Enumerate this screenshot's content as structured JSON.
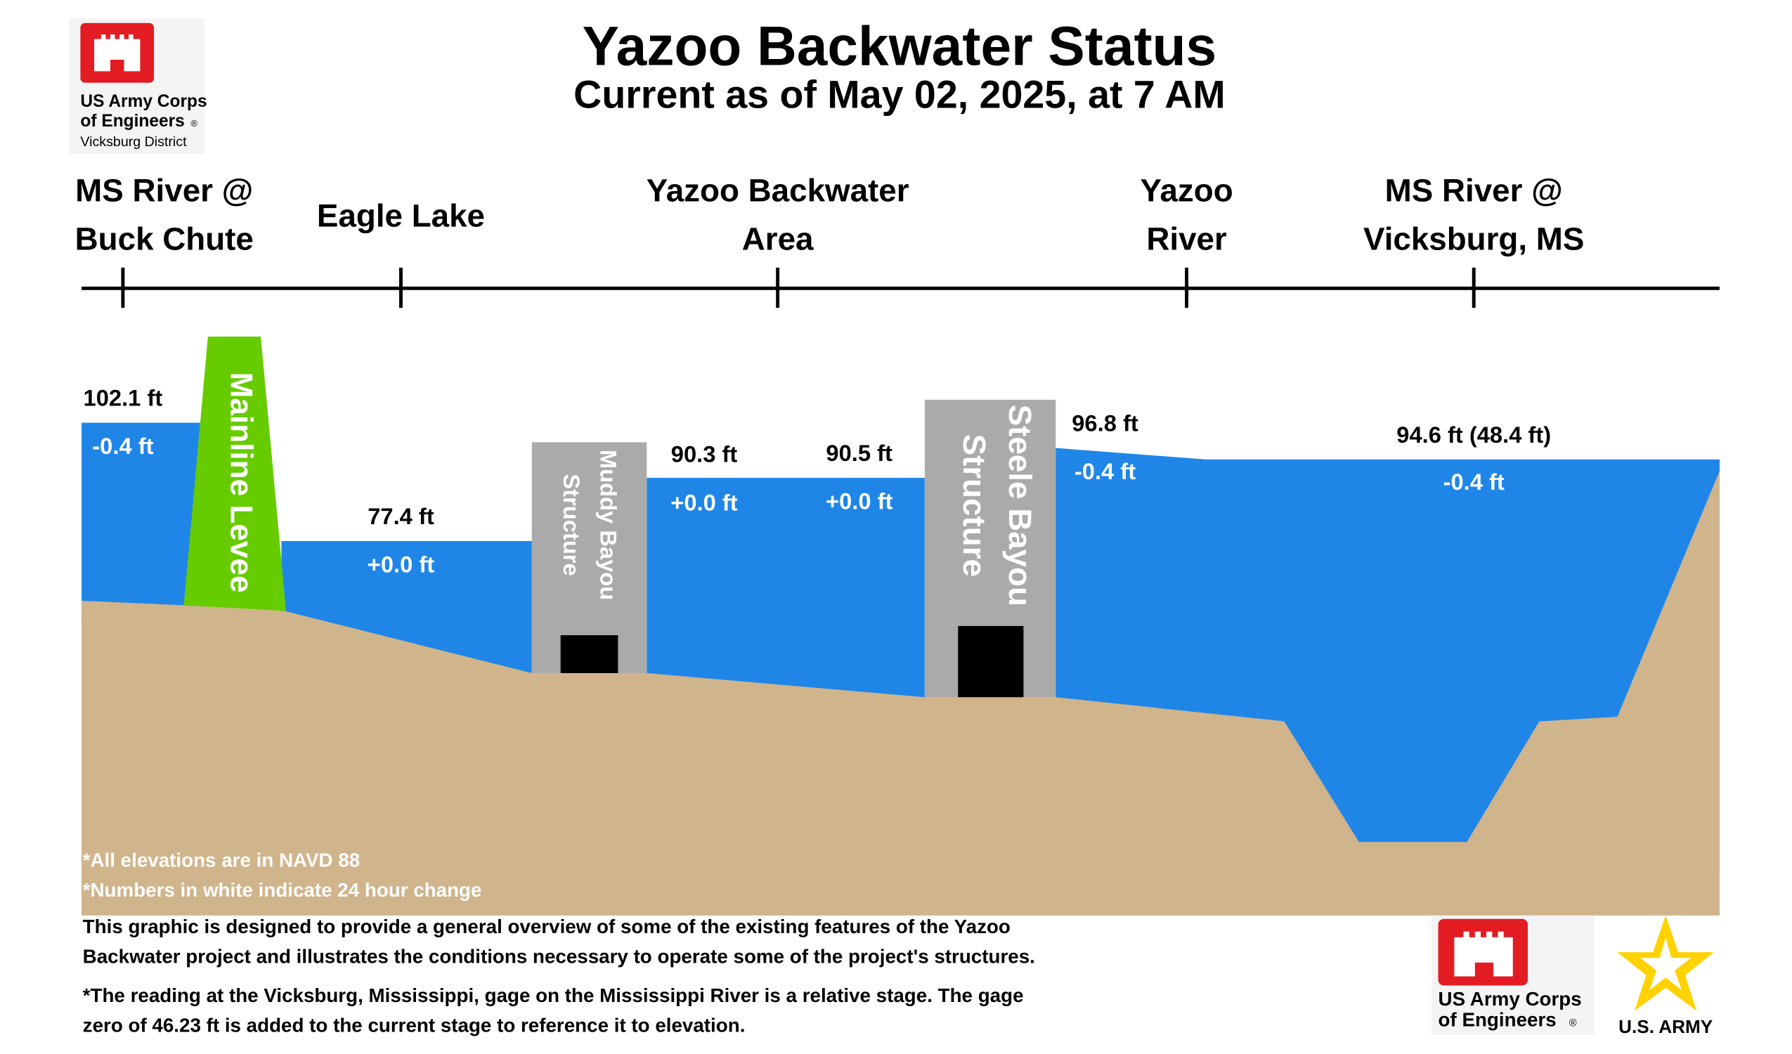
{
  "header": {
    "title": "Yazoo Backwater Status",
    "subtitle": "Current as of May 02, 2025, at 7 AM",
    "logo_lines": [
      "US Army Corps",
      "of Engineers",
      "Vicksburg District"
    ],
    "registered": "®"
  },
  "locations": [
    {
      "lines": [
        "MS River @",
        "Buck Chute"
      ]
    },
    {
      "lines": [
        "Eagle Lake"
      ]
    },
    {
      "lines": [
        "Yazoo Backwater",
        "Area"
      ]
    },
    {
      "lines": [
        "Yazoo",
        "River"
      ]
    },
    {
      "lines": [
        "MS River @",
        "Vicksburg, MS"
      ]
    }
  ],
  "structures": [
    {
      "lines": [
        "Mainline Levee"
      ]
    },
    {
      "lines": [
        "Muddy Bayou",
        "Structure"
      ]
    },
    {
      "lines": [
        "Steele Bayou",
        "Structure"
      ]
    }
  ],
  "readings": [
    {
      "stage": "102.1 ft",
      "change": "-0.4 ft"
    },
    {
      "stage": "77.4 ft",
      "change": "+0.0 ft"
    },
    {
      "stage": "90.3 ft",
      "change": "+0.0 ft"
    },
    {
      "stage": "90.5 ft",
      "change": "+0.0 ft"
    },
    {
      "stage": "96.8 ft",
      "change": "-0.4 ft"
    },
    {
      "stage": "94.6 ft (48.4 ft)",
      "change": "-0.4 ft"
    }
  ],
  "footnotes": [
    "*All elevations are in NAVD 88",
    "*Numbers in white indicate 24 hour change"
  ],
  "notes": [
    {
      "lines": [
        "This graphic is designed to provide a general overview of some of the existing features of the Yazoo",
        "Backwater project and illustrates the conditions necessary to operate some of the project's structures."
      ]
    },
    {
      "lines": [
        "*The reading at the Vicksburg, Mississippi, gage on the Mississippi River is a relative stage. The gage",
        "zero of 46.23 ft is added to the current stage to reference it to elevation."
      ]
    }
  ],
  "footer": {
    "usace_lines": [
      "US Army Corps",
      "of Engineers"
    ],
    "registered": "®",
    "army": "U.S. ARMY"
  }
}
